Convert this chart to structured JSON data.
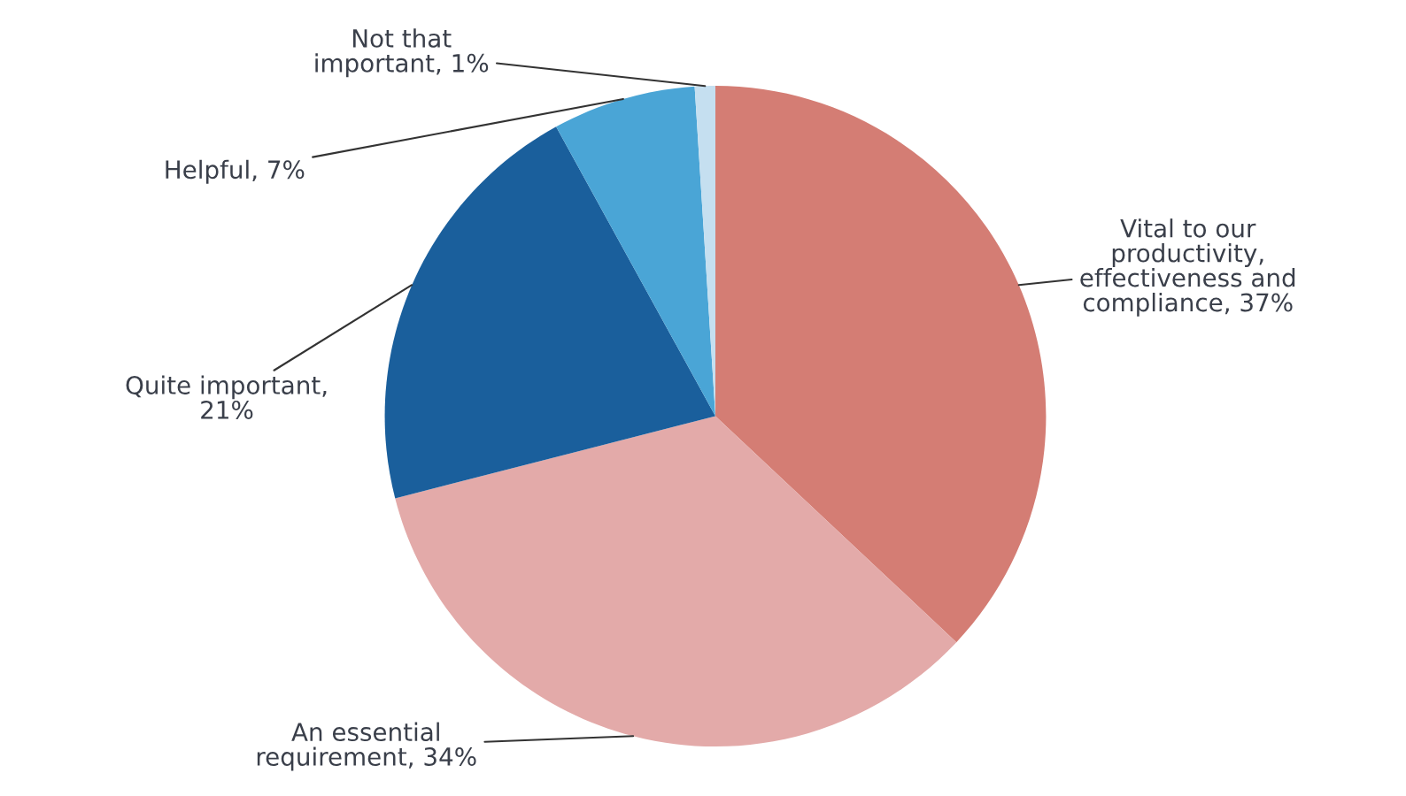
{
  "chart_data": {
    "type": "pie",
    "categories": [
      "Vital to our productivity, effectiveness and compliance, 37%",
      "An essential requirement, 34%",
      "Quite important, 21%",
      "Helpful, 7%",
      "Not that important, 1%"
    ],
    "values": [
      37,
      34,
      21,
      7,
      1
    ],
    "colors": [
      "#d47d74",
      "#e3aaa9",
      "#1a5f9c",
      "#4aa5d6",
      "#c5dff0"
    ]
  }
}
